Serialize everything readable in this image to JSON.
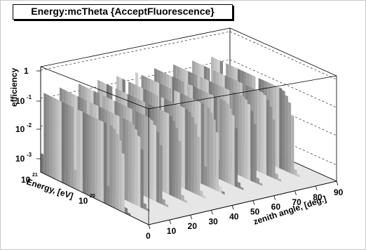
{
  "chart_data": {
    "type": "surface",
    "title": "Energy:mcTheta {AcceptFluorescence}",
    "xlabel": "zenith angle, [deg.]",
    "ylabel": "Energy, [eV]",
    "zlabel": "efficiency",
    "x_ticks": [
      "0",
      "10",
      "20",
      "30",
      "40",
      "50",
      "60",
      "70",
      "80",
      "90"
    ],
    "xlim": [
      0,
      90
    ],
    "y_ticks": [
      {
        "base": "10",
        "exp": "20"
      },
      {
        "base": "10",
        "exp": "21"
      }
    ],
    "z_ticks": [
      {
        "base": "1",
        "exp": ""
      },
      {
        "base": "10",
        "exp": "-1"
      },
      {
        "base": "10",
        "exp": "-2"
      },
      {
        "base": "10",
        "exp": "-3"
      }
    ],
    "z_scale": "log",
    "description_of_data": "efficiency ~1 for zenith angles 0-60 deg, noisy drop-outs; falls off beyond ~65 deg",
    "efficiency_by_angle": [
      {
        "angle": 0,
        "value": 1.0
      },
      {
        "angle": 10,
        "value": 1.0
      },
      {
        "angle": 20,
        "value": 1.0
      },
      {
        "angle": 30,
        "value": 1.0
      },
      {
        "angle": 40,
        "value": 1.0
      },
      {
        "angle": 50,
        "value": 1.0
      },
      {
        "angle": 60,
        "value": 1.0
      },
      {
        "angle": 65,
        "value": 0.5
      },
      {
        "angle": 70,
        "value": 0.001
      },
      {
        "angle": 80,
        "value": 0.0
      },
      {
        "angle": 90,
        "value": 0.0
      }
    ]
  }
}
